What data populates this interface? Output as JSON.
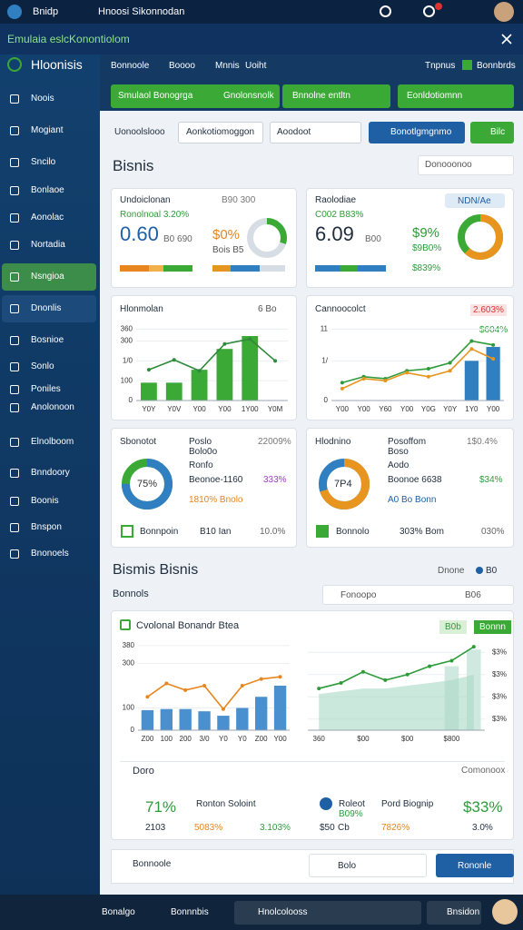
{
  "status": {
    "app": "Bnidp",
    "notice": "Hnoosi Sikonnodan"
  },
  "window": {
    "title": "Emulaia eslcKonontiolom"
  },
  "sidebar": {
    "brand": "Hloonisis",
    "items": [
      "Noois",
      "Mogiant",
      "Sncilo",
      "Bonlaoe",
      "Aonolac",
      "Nortadia",
      "Nsngioa",
      "Dnonlis",
      "Bosnioe",
      "Sonlo",
      "Poniles",
      "Anolonoon",
      "Elnolboom",
      "Bnndoory",
      "Boonis",
      "Bnspon",
      "Bnonoels"
    ]
  },
  "toolbar": {
    "tabs": [
      "Bonnoole",
      "Boooo",
      "Mnnis",
      "Uoiht"
    ],
    "right": [
      "Tnpnus",
      "Bonnbrds"
    ]
  },
  "actions": [
    "Smulaol Bonogrga",
    "Gnolonsnolk",
    "Bnnolne entltn",
    "Eonldotiomnn"
  ],
  "filters": [
    "Uonoolslooo",
    "Aonkotiomoggon",
    "Aoodoot",
    "Bonotlgmgnmo",
    "Bilc"
  ],
  "section1": {
    "title": "Bisnis",
    "control": "Donooonoo"
  },
  "kpi_cards": [
    {
      "title": "Undoiclonan",
      "tag": "B90 300",
      "sub": "Ronolnoal 3.20%",
      "value": "0.60",
      "unit": "B0 690",
      "pct": "$0%",
      "pct_note": "Bois B5"
    },
    {
      "title": "Raolodiae",
      "tag": "NDN/Ae",
      "sub": "C002 B83%",
      "value": "6.09",
      "unit": "B00",
      "pct": "$9%",
      "pct_note": "$9B0%",
      "foot": "$839%"
    }
  ],
  "panels": [
    {
      "title": "Hlonmolan",
      "control": "6 Bo"
    },
    {
      "title": "Cannoocolct",
      "badge": "2.603%",
      "note": "$604%"
    }
  ],
  "donut_cards": [
    {
      "title": "Sbonotot",
      "col2": "Poslo",
      "col2b": "Bolo0o",
      "tag": "22009%",
      "line1": "Ronfo",
      "line2": "Beonoe-1160",
      "line2b": "333%",
      "line3": "1810% Bnolo",
      "foot": "Bonnpoin",
      "foot2": "B10 Ian",
      "foot3": "10.0%"
    },
    {
      "title": "Hlodnino",
      "col2": "Posoffom",
      "col2b": "Boso",
      "tag": "1$0.4%",
      "center": "7P4",
      "line1": "Aodo",
      "line2": "Boonoe 6638",
      "line2b": "$34%",
      "line3": "A0 Bo Bonn",
      "foot": "Bonnolo",
      "foot2": "303% Bom",
      "foot3": "030%"
    }
  ],
  "section2": {
    "title": "Bismis Bisnis",
    "chip1": "Dnone",
    "chip2": "B0",
    "sub": "Bonnols",
    "dropdown": "Fonoopo",
    "dropvalue": "B06"
  },
  "big_card": {
    "title": "Cvolonal Bonandr Btea",
    "chip1": "B0b",
    "chip2": "Bonnn"
  },
  "doro": {
    "title": "Doro",
    "control": "Comonoox",
    "left": {
      "value": "71%",
      "a": "2103",
      "b": "5083%"
    },
    "mid": {
      "label": "Ronton Soloint",
      "c": "3.103%"
    },
    "right": {
      "title": "Roleot",
      "sub": "B09%",
      "a": "$50",
      "b": "Cb",
      "label": "Pord Biognip",
      "c": "7826%",
      "value": "$33%",
      "d": "3.0%"
    }
  },
  "footer": {
    "left": "Bonnoole",
    "mid": "Bolo",
    "button": "Rononle"
  },
  "taskbar": [
    "Bonalgo",
    "Bonnnbis",
    "Hnolcolooss",
    "Bnsidon"
  ],
  "chart_data": [
    {
      "type": "donut",
      "values": [
        30
      ],
      "colors": [
        "#3aa935"
      ],
      "track": "#d6dde4"
    },
    {
      "type": "donut",
      "values": [
        62
      ],
      "colors": [
        "#e8951f"
      ],
      "track": "#3aa935"
    },
    {
      "type": "combo",
      "categories": [
        "Y0Y",
        "Y0V",
        "Y00",
        "Y00",
        "1Y00",
        "Y0M"
      ],
      "ylim": [
        0,
        380
      ],
      "yticks": [
        0,
        100,
        {
          "value": 200,
          "label": "1/0"
        },
        300,
        360
      ],
      "series": [
        {
          "type": "bar",
          "color": "#3aa935",
          "values": [
            90,
            90,
            155,
            260,
            325,
            null
          ]
        },
        {
          "type": "line",
          "color": "#2e8b3a",
          "values": [
            155,
            205,
            150,
            285,
            310,
            200
          ]
        }
      ]
    },
    {
      "type": "combo",
      "categories": [
        "Y00",
        "Y00",
        "Y60",
        "Y00",
        "Y0G",
        "Y0Y",
        "1Y0",
        "Y00"
      ],
      "ylim": [
        0,
        380
      ],
      "yticks": [
        0,
        {
          "value": 200,
          "label": "1/"
        },
        {
          "value": 360,
          "label": "11"
        }
      ],
      "series": [
        {
          "type": "bar",
          "color": "#2f7fc1",
          "values": [
            null,
            null,
            null,
            null,
            null,
            null,
            200,
            270
          ]
        },
        {
          "type": "line",
          "color": "#2e9b3a",
          "values": [
            90,
            120,
            110,
            150,
            160,
            190,
            300,
            280
          ]
        },
        {
          "type": "line",
          "color": "#e8951f",
          "values": [
            60,
            110,
            100,
            140,
            120,
            150,
            260,
            210
          ]
        }
      ]
    },
    {
      "type": "donut",
      "values": [
        75
      ],
      "value_labels": [
        "75%"
      ],
      "colors": [
        "#2f7fc1"
      ],
      "track": "#3aa935"
    },
    {
      "type": "donut",
      "values": [
        70
      ],
      "colors": [
        "#e8951f"
      ],
      "track": "#2f7fc1"
    },
    {
      "type": "combo",
      "categories": [
        "Z00",
        "100",
        "200",
        "3/0",
        "Y0",
        "Y0",
        "Z00",
        "Y00"
      ],
      "ylim": [
        0,
        400
      ],
      "yticks": [
        0,
        100,
        300,
        380
      ],
      "series": [
        {
          "type": "bar",
          "color": "#4a90cf",
          "values": [
            90,
            95,
            95,
            85,
            65,
            100,
            150,
            200
          ]
        },
        {
          "type": "line",
          "color": "#e8851f",
          "values": [
            150,
            210,
            180,
            200,
            95,
            200,
            230,
            240
          ]
        }
      ]
    },
    {
      "type": "combo",
      "yaxis": "right",
      "categories": [
        "360",
        null,
        "$00",
        null,
        "$00",
        null,
        "$800",
        null
      ],
      "ylim": [
        0,
        320
      ],
      "yticks": [
        {
          "value": 40,
          "label": "$3%"
        },
        {
          "value": 120,
          "label": "$3%"
        },
        {
          "value": 200,
          "label": "$3%"
        },
        {
          "value": 280,
          "label": "$3%"
        }
      ],
      "series": [
        {
          "type": "bar",
          "color": "#cfe9e0",
          "values": [
            null,
            null,
            null,
            null,
            null,
            null,
            230,
            290
          ]
        },
        {
          "type": "area",
          "color": "#a8d8c4",
          "values": [
            130,
            140,
            150,
            150,
            160,
            170,
            180,
            200
          ]
        },
        {
          "type": "line",
          "color": "#2e9b3a",
          "values": [
            150,
            170,
            210,
            180,
            200,
            230,
            250,
            300
          ]
        }
      ]
    }
  ]
}
